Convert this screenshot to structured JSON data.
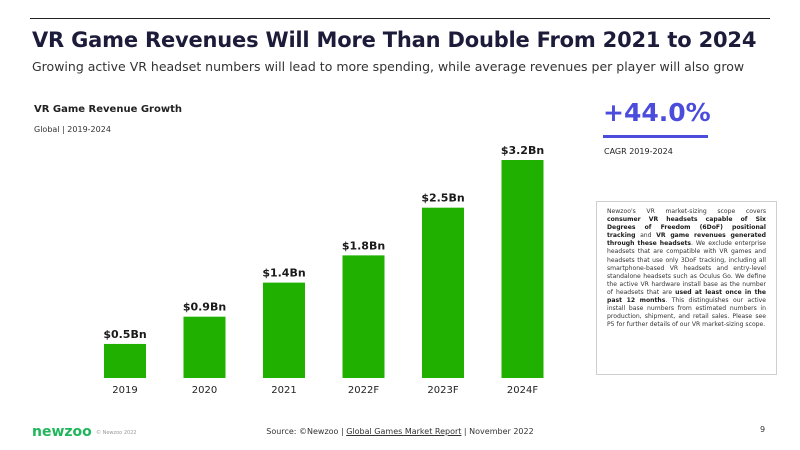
{
  "header": {
    "title": "VR Game Revenues Will More Than Double From 2021 to 2024",
    "subtitle": "Growing active VR headset numbers will lead to more spending, while average revenues per player will also grow"
  },
  "chart_data": {
    "type": "bar",
    "title": "VR Game Revenue Growth",
    "subtitle": "Global | 2019-2024",
    "categories": [
      "2019",
      "2020",
      "2021",
      "2022F",
      "2023F",
      "2024F"
    ],
    "values": [
      0.5,
      0.9,
      1.4,
      1.8,
      2.5,
      3.2
    ],
    "value_labels": [
      "$0.5Bn",
      "$0.9Bn",
      "$1.4Bn",
      "$1.8Bn",
      "$2.5Bn",
      "$3.2Bn"
    ],
    "unit": "Bn USD",
    "ylim": [
      0,
      3.2
    ],
    "bar_color": "#1fb000",
    "xlabel": "",
    "ylabel": ""
  },
  "cagr": {
    "value": "+44.0%",
    "label": "CAGR 2019-2024",
    "color": "#4b4bdc"
  },
  "note": {
    "p1": "Newzoo's VR market-sizing scope covers ",
    "b1": "consumer VR headsets capable of Six Degrees of Freedom (6DoF) positional tracking",
    "p2": " and ",
    "b2": "VR game revenues generated through these headsets",
    "p3": ". We exclude enterprise headsets that are compatible with VR games and headsets that use only 3DoF tracking, including all smartphone-based VR headsets and entry-level standalone headsets such as Oculus Go. We define the active VR hardware install base as the number of headsets that are ",
    "b3": "used at least once in the past 12 months",
    "p4": ". This distinguishes our active install base numbers from estimated numbers in production, shipment, and retail sales. Please see P5 for further details of our VR market-sizing scope."
  },
  "footer": {
    "logo": "newzoo",
    "copyright": "© Newzoo 2022",
    "source_prefix": "Source: ©Newzoo | ",
    "source_link": "Global Games Market Report",
    "source_suffix": " | November 2022",
    "page_number": "9"
  }
}
